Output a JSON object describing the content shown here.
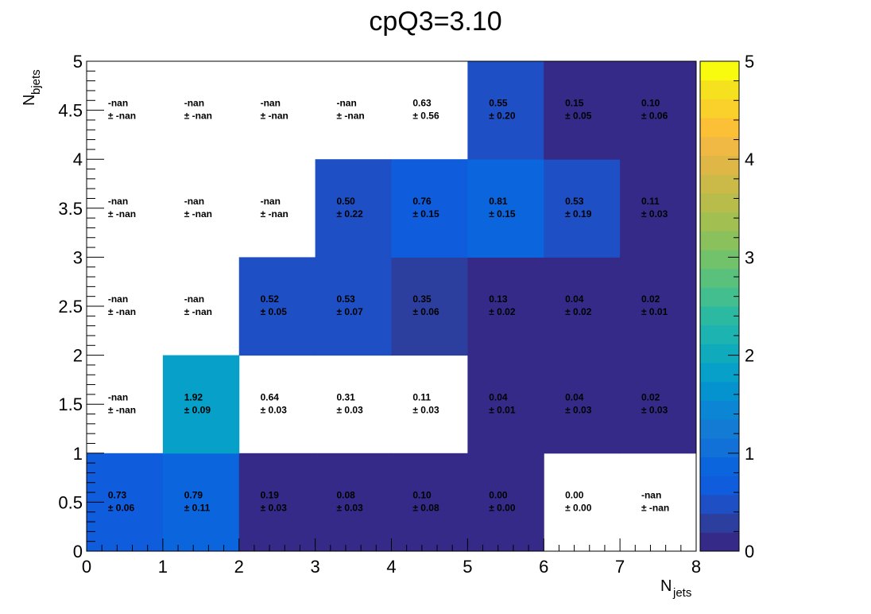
{
  "chart_data": {
    "type": "heatmap",
    "title": "cpQ3=3.10",
    "xlabel_main": "N",
    "xlabel_sub": "jets",
    "ylabel_main": "N",
    "ylabel_sub": "bjets",
    "xlim": [
      0,
      8
    ],
    "ylim": [
      0,
      5
    ],
    "zlim": [
      0,
      5
    ],
    "x_ticks": [
      "0",
      "1",
      "2",
      "3",
      "4",
      "5",
      "6",
      "7",
      "8"
    ],
    "y_ticks": [
      "0",
      "0.5",
      "1",
      "1.5",
      "2",
      "2.5",
      "3",
      "3.5",
      "4",
      "4.5",
      "5"
    ],
    "z_ticks": [
      "0",
      "1",
      "2",
      "3",
      "4",
      "5"
    ],
    "x_bins": [
      [
        0,
        1
      ],
      [
        1,
        2
      ],
      [
        2,
        3
      ],
      [
        3,
        4
      ],
      [
        4,
        5
      ],
      [
        5,
        6
      ],
      [
        6,
        7
      ],
      [
        7,
        8
      ]
    ],
    "y_bins": [
      [
        0,
        1
      ],
      [
        1,
        2
      ],
      [
        2,
        3
      ],
      [
        3,
        4
      ],
      [
        4,
        5
      ]
    ],
    "palette": [
      "#352a87",
      "#2c3f9f",
      "#1f4fc4",
      "#0f5cdd",
      "#0b66de",
      "#1271d8",
      "#137bd4",
      "#0a86d4",
      "#0593cf",
      "#06a0c8",
      "#10aabd",
      "#1cb3b1",
      "#2cb9a1",
      "#43bf8f",
      "#5ac17d",
      "#72c26b",
      "#8bc15d",
      "#a2bf52",
      "#b8bc4a",
      "#cbb948",
      "#deb747",
      "#f0b943",
      "#fbc036",
      "#fad02a",
      "#f5e11d",
      "#f9fb0e"
    ],
    "cells": [
      {
        "ix": 0,
        "iy": 0,
        "value": "0.73",
        "error": "± 0.06",
        "z": 0.73,
        "filled": true
      },
      {
        "ix": 1,
        "iy": 0,
        "value": "0.79",
        "error": "± 0.11",
        "z": 0.79,
        "filled": true
      },
      {
        "ix": 2,
        "iy": 0,
        "value": "0.19",
        "error": "± 0.03",
        "z": 0.19,
        "filled": true
      },
      {
        "ix": 3,
        "iy": 0,
        "value": "0.08",
        "error": "± 0.03",
        "z": 0.08,
        "filled": true
      },
      {
        "ix": 4,
        "iy": 0,
        "value": "0.10",
        "error": "± 0.08",
        "z": 0.1,
        "filled": true
      },
      {
        "ix": 5,
        "iy": 0,
        "value": "0.00",
        "error": "± 0.00",
        "z": 0.0,
        "filled": true
      },
      {
        "ix": 6,
        "iy": 0,
        "value": "0.00",
        "error": "± 0.00",
        "z": 0.0,
        "filled": false
      },
      {
        "ix": 7,
        "iy": 0,
        "value": "-nan",
        "error": "± -nan",
        "z": null,
        "filled": false
      },
      {
        "ix": 0,
        "iy": 1,
        "value": "-nan",
        "error": "± -nan",
        "z": null,
        "filled": false
      },
      {
        "ix": 1,
        "iy": 1,
        "value": "1.92",
        "error": "± 0.09",
        "z": 1.92,
        "filled": true
      },
      {
        "ix": 2,
        "iy": 1,
        "value": "0.64",
        "error": "± 0.03",
        "z": 0.64,
        "filled": false
      },
      {
        "ix": 3,
        "iy": 1,
        "value": "0.31",
        "error": "± 0.03",
        "z": 0.31,
        "filled": false
      },
      {
        "ix": 4,
        "iy": 1,
        "value": "0.11",
        "error": "± 0.03",
        "z": 0.11,
        "filled": false
      },
      {
        "ix": 5,
        "iy": 1,
        "value": "0.04",
        "error": "± 0.01",
        "z": 0.04,
        "filled": true
      },
      {
        "ix": 6,
        "iy": 1,
        "value": "0.04",
        "error": "± 0.03",
        "z": 0.04,
        "filled": true
      },
      {
        "ix": 7,
        "iy": 1,
        "value": "0.02",
        "error": "± 0.03",
        "z": 0.02,
        "filled": true
      },
      {
        "ix": 0,
        "iy": 2,
        "value": "-nan",
        "error": "± -nan",
        "z": null,
        "filled": false
      },
      {
        "ix": 1,
        "iy": 2,
        "value": "-nan",
        "error": "± -nan",
        "z": null,
        "filled": false
      },
      {
        "ix": 2,
        "iy": 2,
        "value": "0.52",
        "error": "± 0.05",
        "z": 0.52,
        "filled": true
      },
      {
        "ix": 3,
        "iy": 2,
        "value": "0.53",
        "error": "± 0.07",
        "z": 0.53,
        "filled": true
      },
      {
        "ix": 4,
        "iy": 2,
        "value": "0.35",
        "error": "± 0.06",
        "z": 0.35,
        "filled": true
      },
      {
        "ix": 5,
        "iy": 2,
        "value": "0.13",
        "error": "± 0.02",
        "z": 0.13,
        "filled": true
      },
      {
        "ix": 6,
        "iy": 2,
        "value": "0.04",
        "error": "± 0.02",
        "z": 0.04,
        "filled": true
      },
      {
        "ix": 7,
        "iy": 2,
        "value": "0.02",
        "error": "± 0.01",
        "z": 0.02,
        "filled": true
      },
      {
        "ix": 0,
        "iy": 3,
        "value": "-nan",
        "error": "± -nan",
        "z": null,
        "filled": false
      },
      {
        "ix": 1,
        "iy": 3,
        "value": "-nan",
        "error": "± -nan",
        "z": null,
        "filled": false
      },
      {
        "ix": 2,
        "iy": 3,
        "value": "-nan",
        "error": "± -nan",
        "z": null,
        "filled": false
      },
      {
        "ix": 3,
        "iy": 3,
        "value": "0.50",
        "error": "± 0.22",
        "z": 0.5,
        "filled": true
      },
      {
        "ix": 4,
        "iy": 3,
        "value": "0.76",
        "error": "± 0.15",
        "z": 0.76,
        "filled": true
      },
      {
        "ix": 5,
        "iy": 3,
        "value": "0.81",
        "error": "± 0.15",
        "z": 0.81,
        "filled": true
      },
      {
        "ix": 6,
        "iy": 3,
        "value": "0.53",
        "error": "± 0.19",
        "z": 0.53,
        "filled": true
      },
      {
        "ix": 7,
        "iy": 3,
        "value": "0.11",
        "error": "± 0.03",
        "z": 0.11,
        "filled": true
      },
      {
        "ix": 0,
        "iy": 4,
        "value": "-nan",
        "error": "± -nan",
        "z": null,
        "filled": false
      },
      {
        "ix": 1,
        "iy": 4,
        "value": "-nan",
        "error": "± -nan",
        "z": null,
        "filled": false
      },
      {
        "ix": 2,
        "iy": 4,
        "value": "-nan",
        "error": "± -nan",
        "z": null,
        "filled": false
      },
      {
        "ix": 3,
        "iy": 4,
        "value": "-nan",
        "error": "± -nan",
        "z": null,
        "filled": false
      },
      {
        "ix": 4,
        "iy": 4,
        "value": "0.63",
        "error": "± 0.56",
        "z": 0.63,
        "filled": false
      },
      {
        "ix": 5,
        "iy": 4,
        "value": "0.55",
        "error": "± 0.20",
        "z": 0.55,
        "filled": true
      },
      {
        "ix": 6,
        "iy": 4,
        "value": "0.15",
        "error": "± 0.05",
        "z": 0.15,
        "filled": true
      },
      {
        "ix": 7,
        "iy": 4,
        "value": "0.10",
        "error": "± 0.06",
        "z": 0.1,
        "filled": true
      }
    ]
  }
}
